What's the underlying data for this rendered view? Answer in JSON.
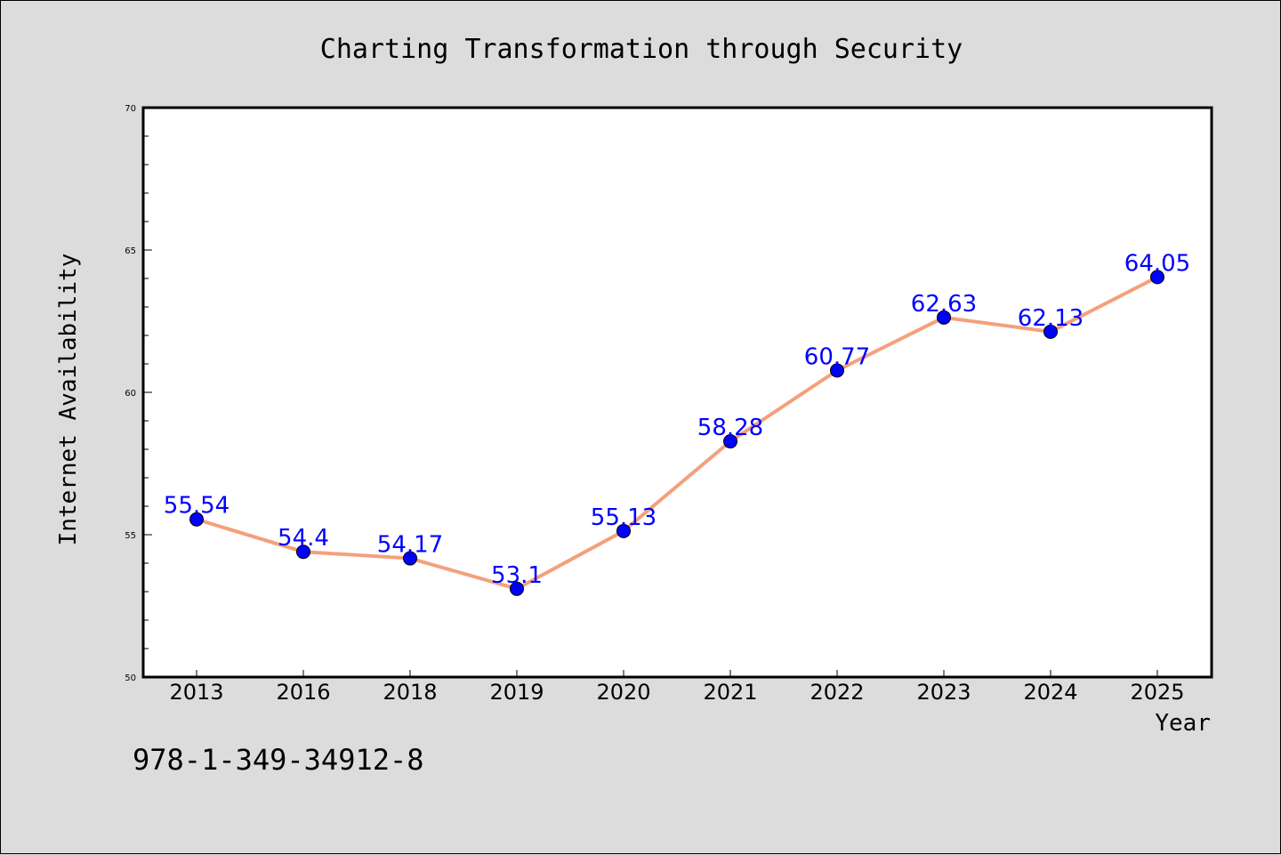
{
  "chart_data": {
    "type": "line",
    "title": "Charting Transformation through Security",
    "xlabel": "Year",
    "ylabel": "Internet Availability",
    "categories": [
      "2013",
      "2016",
      "2018",
      "2019",
      "2020",
      "2021",
      "2022",
      "2023",
      "2024",
      "2025"
    ],
    "series": [
      {
        "values": [
          55.54,
          54.4,
          54.17,
          53.1,
          55.13,
          58.28,
          60.77,
          62.63,
          62.13,
          64.05
        ]
      }
    ],
    "data_labels": [
      "55.54",
      "54.4",
      "54.17",
      "53.1",
      "55.13",
      "58.28",
      "60.77",
      "62.63",
      "62.13",
      "64.05"
    ],
    "ylim": [
      50,
      70
    ],
    "y_ticks": [
      50,
      55,
      60,
      65,
      70
    ],
    "y_minor_step": 1,
    "grid": false,
    "colors": {
      "line": "#f4a07c",
      "marker": "#0000ff",
      "label": "#0000ff",
      "background": "#dcdcdc",
      "plot_background": "#ffffff"
    }
  },
  "footer": {
    "code": "978-1-349-34912-8"
  }
}
